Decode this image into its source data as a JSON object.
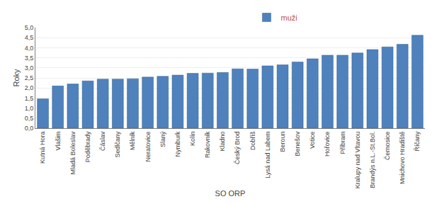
{
  "chart_data": {
    "type": "bar",
    "categories": [
      "Kutná Hora",
      "Vlašim",
      "Mladá Boleslav",
      "Poděbrady",
      "Čáslav",
      "Sedlčany",
      "Mělník",
      "Neratovice",
      "Slaný",
      "Nymburk",
      "Kolín",
      "Rakovník",
      "Kladno",
      "Český Brod",
      "Dobříš",
      "Lysá nad Labem",
      "Beroun",
      "Benešov",
      "Votice",
      "Hořovice",
      "Příbram",
      "Kralupy nad Vltavou",
      "Brandýs n.L.-St.Bol.",
      "Černosice",
      "Mnichovo Hradiště",
      "Říčany"
    ],
    "series": [
      {
        "name": "muži",
        "color": "#4f81bd",
        "values": [
          1.46,
          2.1,
          2.2,
          2.35,
          2.44,
          2.44,
          2.46,
          2.54,
          2.58,
          2.64,
          2.73,
          2.74,
          2.77,
          2.95,
          2.94,
          3.1,
          3.15,
          3.29,
          3.45,
          3.63,
          3.63,
          3.74,
          3.91,
          4.04,
          4.17,
          4.62
        ]
      }
    ],
    "xlabel": "SO ORP",
    "ylabel": "Roky",
    "ylim": [
      0.0,
      5.0
    ],
    "yticks": [
      {
        "value": 0.0,
        "label": "0,0"
      },
      {
        "value": 0.5,
        "label": "0,5"
      },
      {
        "value": 1.0,
        "label": "1,0"
      },
      {
        "value": 1.5,
        "label": "1,5"
      },
      {
        "value": 2.0,
        "label": "2,0"
      },
      {
        "value": 2.5,
        "label": "2,5"
      },
      {
        "value": 3.0,
        "label": "3,0"
      },
      {
        "value": 3.5,
        "label": "3,5"
      },
      {
        "value": 4.0,
        "label": "4,0"
      },
      {
        "value": 4.5,
        "label": "4,5"
      },
      {
        "value": 5.0,
        "label": "5,0"
      }
    ],
    "grid": true,
    "legend": "top"
  }
}
